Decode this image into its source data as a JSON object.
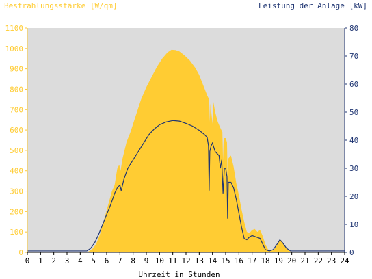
{
  "chart_data": {
    "type": "area+line",
    "title_left": "Bestrahlungsstärke [W/qm]",
    "title_right": "Leistung der Anlage [kW]",
    "xlabel": "Uhrzeit in Stunden",
    "xlim": [
      0,
      24
    ],
    "ylim_left": [
      0,
      1100
    ],
    "ylim_right": [
      0,
      80
    ],
    "x_ticks": [
      "0",
      "1",
      "2",
      "3",
      "4",
      "5",
      "6",
      "7",
      "8",
      "9",
      "10",
      "11",
      "12",
      "13",
      "14",
      "15",
      "16",
      "17",
      "18",
      "19",
      "20",
      "21",
      "22",
      "23",
      "24"
    ],
    "y_left_ticks": [
      "0",
      "100",
      "200",
      "300",
      "400",
      "500",
      "600",
      "700",
      "800",
      "900",
      "1000",
      "1100"
    ],
    "y_right_ticks": [
      "0",
      "10",
      "20",
      "30",
      "40",
      "50",
      "60",
      "70",
      "80"
    ],
    "grid": false,
    "colors": {
      "irradiance": "#ffcc33",
      "power": "#1f3572",
      "plot_bg": "#dcdcdc",
      "left_axis": "#ffcc33",
      "right_axis": "#1f3572"
    },
    "series": [
      {
        "axis": "left",
        "points": [
          [
            0,
            0
          ],
          [
            4.3,
            0
          ],
          [
            4.6,
            3
          ],
          [
            4.9,
            15
          ],
          [
            5.2,
            40
          ],
          [
            5.5,
            90
          ],
          [
            5.8,
            160
          ],
          [
            6.1,
            230
          ],
          [
            6.4,
            300
          ],
          [
            6.6,
            330
          ],
          [
            6.8,
            410
          ],
          [
            6.95,
            430
          ],
          [
            7.05,
            400
          ],
          [
            7.2,
            460
          ],
          [
            7.5,
            540
          ],
          [
            7.8,
            590
          ],
          [
            8.0,
            630
          ],
          [
            8.3,
            690
          ],
          [
            8.6,
            750
          ],
          [
            9.0,
            810
          ],
          [
            9.4,
            860
          ],
          [
            9.8,
            910
          ],
          [
            10.2,
            950
          ],
          [
            10.6,
            980
          ],
          [
            10.9,
            993
          ],
          [
            11.2,
            992
          ],
          [
            11.5,
            985
          ],
          [
            11.9,
            965
          ],
          [
            12.3,
            940
          ],
          [
            12.7,
            905
          ],
          [
            13.0,
            870
          ],
          [
            13.3,
            820
          ],
          [
            13.6,
            770
          ],
          [
            13.75,
            750
          ],
          [
            13.8,
            640
          ],
          [
            13.85,
            730
          ],
          [
            14.0,
            630
          ],
          [
            14.05,
            745
          ],
          [
            14.2,
            690
          ],
          [
            14.4,
            640
          ],
          [
            14.6,
            610
          ],
          [
            14.75,
            590
          ],
          [
            14.8,
            450
          ],
          [
            14.85,
            560
          ],
          [
            15.0,
            560
          ],
          [
            15.1,
            540
          ],
          [
            15.15,
            360
          ],
          [
            15.2,
            460
          ],
          [
            15.4,
            475
          ],
          [
            15.6,
            420
          ],
          [
            15.8,
            340
          ],
          [
            16.0,
            280
          ],
          [
            16.2,
            210
          ],
          [
            16.4,
            150
          ],
          [
            16.6,
            100
          ],
          [
            16.8,
            95
          ],
          [
            17.0,
            110
          ],
          [
            17.2,
            115
          ],
          [
            17.4,
            100
          ],
          [
            17.6,
            110
          ],
          [
            17.8,
            80
          ],
          [
            18.0,
            40
          ],
          [
            18.2,
            15
          ],
          [
            18.4,
            8
          ],
          [
            18.6,
            10
          ],
          [
            18.8,
            25
          ],
          [
            19.0,
            55
          ],
          [
            19.2,
            60
          ],
          [
            19.4,
            35
          ],
          [
            19.6,
            20
          ],
          [
            19.8,
            8
          ],
          [
            20.0,
            0
          ],
          [
            24,
            0
          ]
        ]
      },
      {
        "axis": "right",
        "points": [
          [
            0,
            0.5
          ],
          [
            4.5,
            0.5
          ],
          [
            4.8,
            1.5
          ],
          [
            5.1,
            3.5
          ],
          [
            5.4,
            6.5
          ],
          [
            5.7,
            10
          ],
          [
            6.0,
            13.5
          ],
          [
            6.3,
            17
          ],
          [
            6.6,
            21
          ],
          [
            6.8,
            23
          ],
          [
            7.0,
            24
          ],
          [
            7.1,
            22
          ],
          [
            7.3,
            26
          ],
          [
            7.6,
            30
          ],
          [
            8.0,
            33
          ],
          [
            8.4,
            36
          ],
          [
            8.8,
            39
          ],
          [
            9.2,
            42
          ],
          [
            9.6,
            44
          ],
          [
            10.0,
            45.5
          ],
          [
            10.5,
            46.5
          ],
          [
            11.0,
            47
          ],
          [
            11.5,
            46.8
          ],
          [
            12.0,
            46
          ],
          [
            12.5,
            45
          ],
          [
            13.0,
            43.5
          ],
          [
            13.4,
            42
          ],
          [
            13.6,
            41
          ],
          [
            13.7,
            38
          ],
          [
            13.75,
            22
          ],
          [
            13.8,
            36
          ],
          [
            13.9,
            38
          ],
          [
            14.0,
            39
          ],
          [
            14.2,
            36
          ],
          [
            14.5,
            34.5
          ],
          [
            14.6,
            30
          ],
          [
            14.7,
            33
          ],
          [
            14.8,
            21
          ],
          [
            14.9,
            30
          ],
          [
            15.0,
            30
          ],
          [
            15.1,
            27
          ],
          [
            15.15,
            12
          ],
          [
            15.2,
            25
          ],
          [
            15.4,
            25
          ],
          [
            15.6,
            23
          ],
          [
            15.8,
            19
          ],
          [
            16.0,
            14
          ],
          [
            16.2,
            9
          ],
          [
            16.4,
            5
          ],
          [
            16.6,
            4.5
          ],
          [
            16.8,
            5.5
          ],
          [
            17.0,
            6
          ],
          [
            17.3,
            5.5
          ],
          [
            17.6,
            5
          ],
          [
            17.8,
            3
          ],
          [
            18.0,
            1
          ],
          [
            18.3,
            0.5
          ],
          [
            18.6,
            1
          ],
          [
            18.9,
            3
          ],
          [
            19.1,
            4.5
          ],
          [
            19.3,
            3.5
          ],
          [
            19.6,
            1.5
          ],
          [
            19.9,
            0.5
          ],
          [
            20.2,
            0.5
          ],
          [
            24,
            0.5
          ]
        ]
      }
    ]
  }
}
